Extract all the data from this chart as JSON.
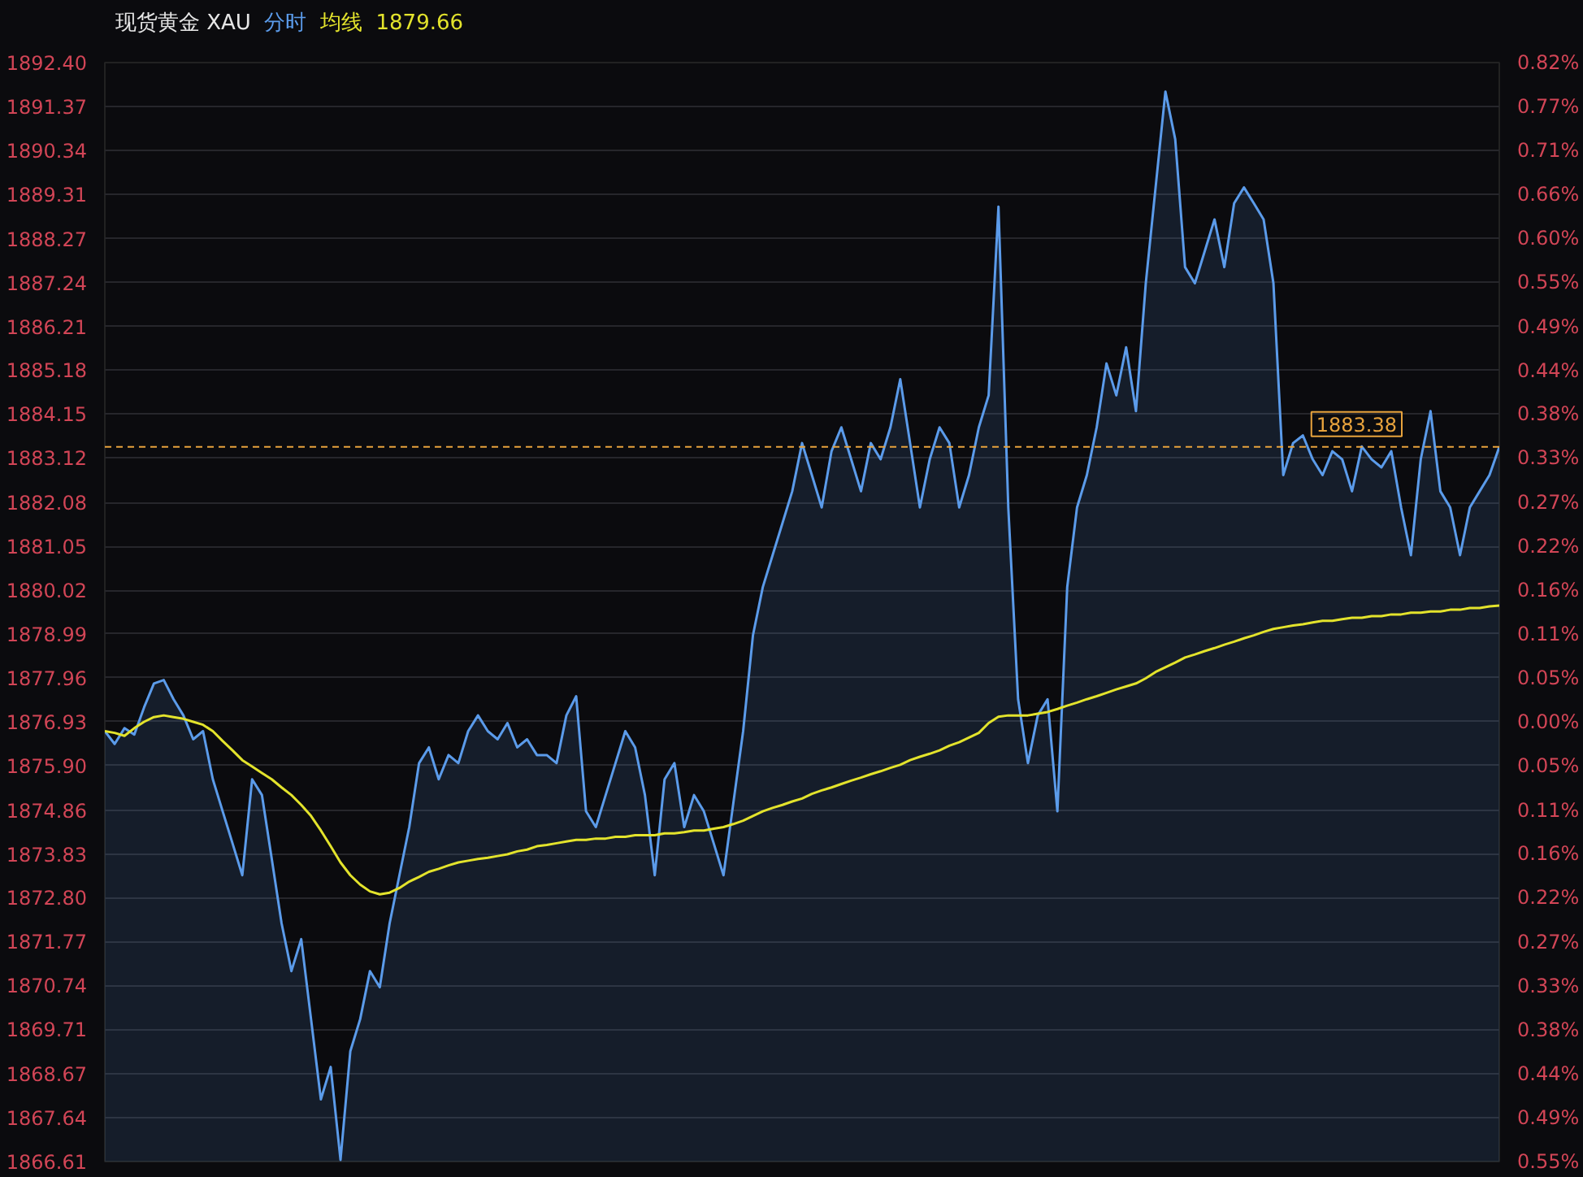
{
  "chart_data": {
    "type": "line",
    "title": "现货黄金 XAU",
    "categories": [
      null,
      null,
      null,
      null,
      null,
      null,
      null,
      null,
      null,
      null,
      null,
      null,
      null,
      null,
      null,
      null,
      null,
      null,
      null,
      null,
      null,
      null,
      null,
      null,
      null,
      null,
      null,
      null,
      null,
      null,
      null,
      null,
      null,
      null,
      null,
      null,
      null,
      null,
      null,
      null,
      null,
      null,
      null,
      null,
      null,
      null,
      null,
      null,
      null,
      null,
      null,
      null,
      null,
      null,
      null,
      null,
      null,
      null,
      null,
      null,
      null,
      null,
      null,
      null,
      null,
      null,
      null,
      null,
      null,
      null,
      null,
      null,
      null,
      null,
      null,
      null,
      null,
      null,
      null,
      null,
      null,
      null,
      null,
      null,
      null,
      null,
      null,
      null,
      null,
      null,
      null,
      null,
      null,
      null,
      null,
      null,
      null,
      null,
      null,
      null,
      null,
      null,
      null,
      null,
      null,
      null,
      null,
      null,
      null,
      null,
      null,
      null,
      null,
      null,
      null,
      null,
      null,
      null,
      null,
      null,
      null,
      null,
      null,
      null,
      null,
      null,
      null,
      null,
      null,
      null,
      null,
      null,
      null,
      null,
      null,
      null,
      null,
      null,
      null,
      null,
      null,
      null,
      null
    ],
    "series": [
      {
        "name": "分时",
        "type": "area",
        "color": "#5b9bea",
        "values": [
          1876.71,
          1876.41,
          1876.78,
          1876.63,
          1877.27,
          1877.83,
          1877.91,
          1877.46,
          1877.08,
          1876.52,
          1876.71,
          1875.58,
          1874.83,
          1874.08,
          1873.33,
          1875.58,
          1875.21,
          1873.71,
          1872.2,
          1871.08,
          1871.83,
          1869.95,
          1868.07,
          1868.83,
          1866.65,
          1869.2,
          1869.95,
          1871.08,
          1870.7,
          1872.2,
          1873.33,
          1874.46,
          1875.96,
          1876.33,
          1875.58,
          1876.15,
          1875.96,
          1876.71,
          1877.08,
          1876.71,
          1876.52,
          1876.9,
          1876.33,
          1876.52,
          1876.15,
          1876.15,
          1875.96,
          1877.08,
          1877.53,
          1874.83,
          1874.46,
          1875.21,
          1875.96,
          1876.71,
          1876.33,
          1875.21,
          1873.33,
          1875.58,
          1875.96,
          1874.46,
          1875.21,
          1874.83,
          1874.08,
          1873.33,
          1875.02,
          1876.71,
          1878.96,
          1880.09,
          1880.84,
          1881.59,
          1882.34,
          1883.47,
          1882.72,
          1881.96,
          1883.28,
          1883.84,
          1883.09,
          1882.34,
          1883.47,
          1883.09,
          1883.84,
          1884.97,
          1883.47,
          1881.96,
          1883.09,
          1883.84,
          1883.47,
          1881.96,
          1882.72,
          1883.84,
          1884.59,
          1889.02,
          1881.96,
          1877.46,
          1875.96,
          1877.08,
          1877.46,
          1874.83,
          1880.09,
          1881.96,
          1882.72,
          1883.84,
          1885.34,
          1884.59,
          1885.72,
          1884.22,
          1887.22,
          1889.47,
          1891.72,
          1890.6,
          1887.6,
          1887.22,
          1887.97,
          1888.72,
          1887.6,
          1889.1,
          1889.47,
          1889.1,
          1888.72,
          1887.22,
          1882.72,
          1883.47,
          1883.65,
          1883.09,
          1882.72,
          1883.28,
          1883.09,
          1882.34,
          1883.39,
          1883.09,
          1882.9,
          1883.28,
          1881.96,
          1880.84,
          1883.09,
          1884.22,
          1882.34,
          1881.96,
          1880.84,
          1881.96,
          1882.34,
          1882.72,
          1883.38
        ]
      },
      {
        "name": "均线",
        "type": "line",
        "color": "#e3e32c",
        "values": [
          1876.71,
          1876.67,
          1876.6,
          1876.78,
          1876.93,
          1877.04,
          1877.08,
          1877.04,
          1877.0,
          1876.93,
          1876.86,
          1876.71,
          1876.48,
          1876.26,
          1876.03,
          1875.88,
          1875.73,
          1875.58,
          1875.39,
          1875.21,
          1874.98,
          1874.72,
          1874.38,
          1874.01,
          1873.63,
          1873.33,
          1873.11,
          1872.95,
          1872.88,
          1872.92,
          1873.03,
          1873.18,
          1873.29,
          1873.41,
          1873.48,
          1873.56,
          1873.63,
          1873.67,
          1873.71,
          1873.74,
          1873.78,
          1873.82,
          1873.89,
          1873.93,
          1874.01,
          1874.04,
          1874.08,
          1874.12,
          1874.16,
          1874.16,
          1874.19,
          1874.19,
          1874.23,
          1874.23,
          1874.27,
          1874.27,
          1874.27,
          1874.31,
          1874.31,
          1874.34,
          1874.38,
          1874.38,
          1874.42,
          1874.46,
          1874.53,
          1874.61,
          1874.72,
          1874.83,
          1874.91,
          1874.98,
          1875.06,
          1875.13,
          1875.24,
          1875.32,
          1875.39,
          1875.47,
          1875.55,
          1875.62,
          1875.7,
          1875.77,
          1875.85,
          1875.92,
          1876.03,
          1876.11,
          1876.18,
          1876.26,
          1876.37,
          1876.45,
          1876.56,
          1876.67,
          1876.9,
          1877.05,
          1877.08,
          1877.08,
          1877.08,
          1877.12,
          1877.16,
          1877.23,
          1877.31,
          1877.38,
          1877.46,
          1877.53,
          1877.61,
          1877.69,
          1877.76,
          1877.83,
          1877.95,
          1878.1,
          1878.21,
          1878.32,
          1878.44,
          1878.51,
          1878.59,
          1878.66,
          1878.74,
          1878.81,
          1878.89,
          1878.96,
          1879.04,
          1879.11,
          1879.15,
          1879.19,
          1879.22,
          1879.26,
          1879.3,
          1879.3,
          1879.34,
          1879.37,
          1879.37,
          1879.41,
          1879.41,
          1879.45,
          1879.45,
          1879.49,
          1879.49,
          1879.52,
          1879.52,
          1879.56,
          1879.56,
          1879.6,
          1879.6,
          1879.64,
          1879.66
        ]
      }
    ],
    "annotations": [
      "1879.66"
    ],
    "ylim": [
      1866.61,
      1892.4
    ],
    "yticks": [
      {
        "value": 1892.4,
        "label": "1892.40"
      },
      1891.37,
      1890.34,
      1889.31,
      1888.27,
      1887.24,
      1886.21,
      1885.18,
      1884.15,
      1883.12,
      1882.08,
      1881.05,
      1880.02,
      1878.99,
      1877.96,
      1876.93,
      {
        "value": 1875.9,
        "label": "1875.90"
      },
      1874.86,
      1873.83,
      {
        "value": 1872.8,
        "label": "1872.80"
      },
      1871.77,
      1870.74,
      1869.71,
      1868.67,
      1867.64,
      1866.61
    ],
    "y2lim": [
      -0.5498,
      0.8242
    ],
    "y2ticks": [
      {
        "value": 0.8242,
        "label": "0.82%"
      },
      {
        "value": 0.7693,
        "label": "0.77%"
      },
      {
        "value": 0.7145,
        "label": "0.71%"
      },
      {
        "value": 0.6596,
        "label": "0.66%"
      },
      {
        "value": 0.6042,
        "label": "0.60%"
      },
      {
        "value": 0.5493,
        "label": "0.55%"
      },
      {
        "value": 0.4944,
        "label": "0.49%"
      },
      {
        "value": 0.4395,
        "label": "0.44%"
      },
      {
        "value": 0.3847,
        "label": "0.38%"
      },
      {
        "value": 0.3298,
        "label": "0.33%"
      },
      {
        "value": 0.2744,
        "label": "0.27%"
      },
      {
        "value": 0.2195,
        "label": "0.22%"
      },
      {
        "value": 0.1646,
        "label": "0.16%"
      },
      {
        "value": 0.1098,
        "label": "0.11%"
      },
      {
        "value": 0.0549,
        "label": "0.05%"
      },
      {
        "value": 0,
        "label": "0.00%"
      },
      {
        "value": -0.0549,
        "label": "0.05%"
      },
      {
        "value": -0.1103,
        "label": "0.11%"
      },
      {
        "value": -0.1649,
        "label": "0.16%"
      },
      {
        "value": -0.22,
        "label": "0.22%"
      },
      {
        "value": -0.2749,
        "label": "0.27%"
      },
      {
        "value": -0.3298,
        "label": "0.33%"
      },
      {
        "value": -0.3847,
        "label": "0.38%"
      },
      {
        "value": -0.4401,
        "label": "0.44%"
      },
      {
        "value": -0.495,
        "label": "0.49%"
      },
      {
        "value": -0.5498,
        "label": "0.55%"
      }
    ],
    "ref_lines": [
      {
        "axis": "y",
        "value": 1883.38,
        "label": "1883.38",
        "color": "#e8a33d",
        "line_style": "dashed"
      }
    ],
    "grid": "y",
    "legend": "top left"
  }
}
